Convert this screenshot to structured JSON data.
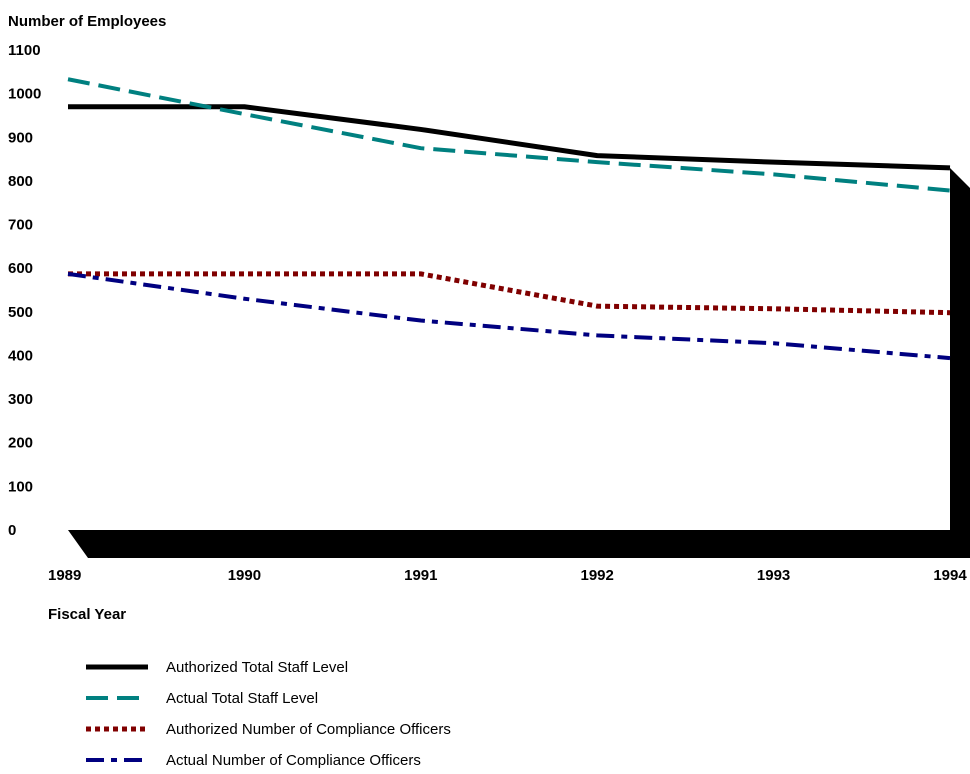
{
  "chart_data": {
    "type": "line",
    "ylabel": "Number of Employees",
    "xlabel": "Fiscal Year",
    "x": [
      "1989",
      "1990",
      "1991",
      "1992",
      "1993",
      "1994"
    ],
    "ylim": [
      0,
      1100
    ],
    "yticks": [
      "0",
      "100",
      "200",
      "300",
      "400",
      "500",
      "600",
      "700",
      "800",
      "900",
      "1000",
      "1100"
    ],
    "grid": false,
    "legend_position": "bottom",
    "series": [
      {
        "name": "Authorized Total Staff Level",
        "values": [
          970,
          970,
          918,
          858,
          843,
          830
        ],
        "color": "#000000",
        "style": "solid"
      },
      {
        "name": "Actual Total Staff Level",
        "values": [
          1033,
          953,
          875,
          843,
          815,
          778
        ],
        "color": "#008080",
        "style": "dashed"
      },
      {
        "name": "Authorized Number of Compliance Officers",
        "values": [
          587,
          587,
          587,
          513,
          507,
          498
        ],
        "color": "#800000",
        "style": "dotted"
      },
      {
        "name": "Actual Number of Compliance Officers",
        "values": [
          587,
          530,
          480,
          446,
          428,
          394
        ],
        "color": "#000080",
        "style": "dash-dot"
      }
    ]
  }
}
